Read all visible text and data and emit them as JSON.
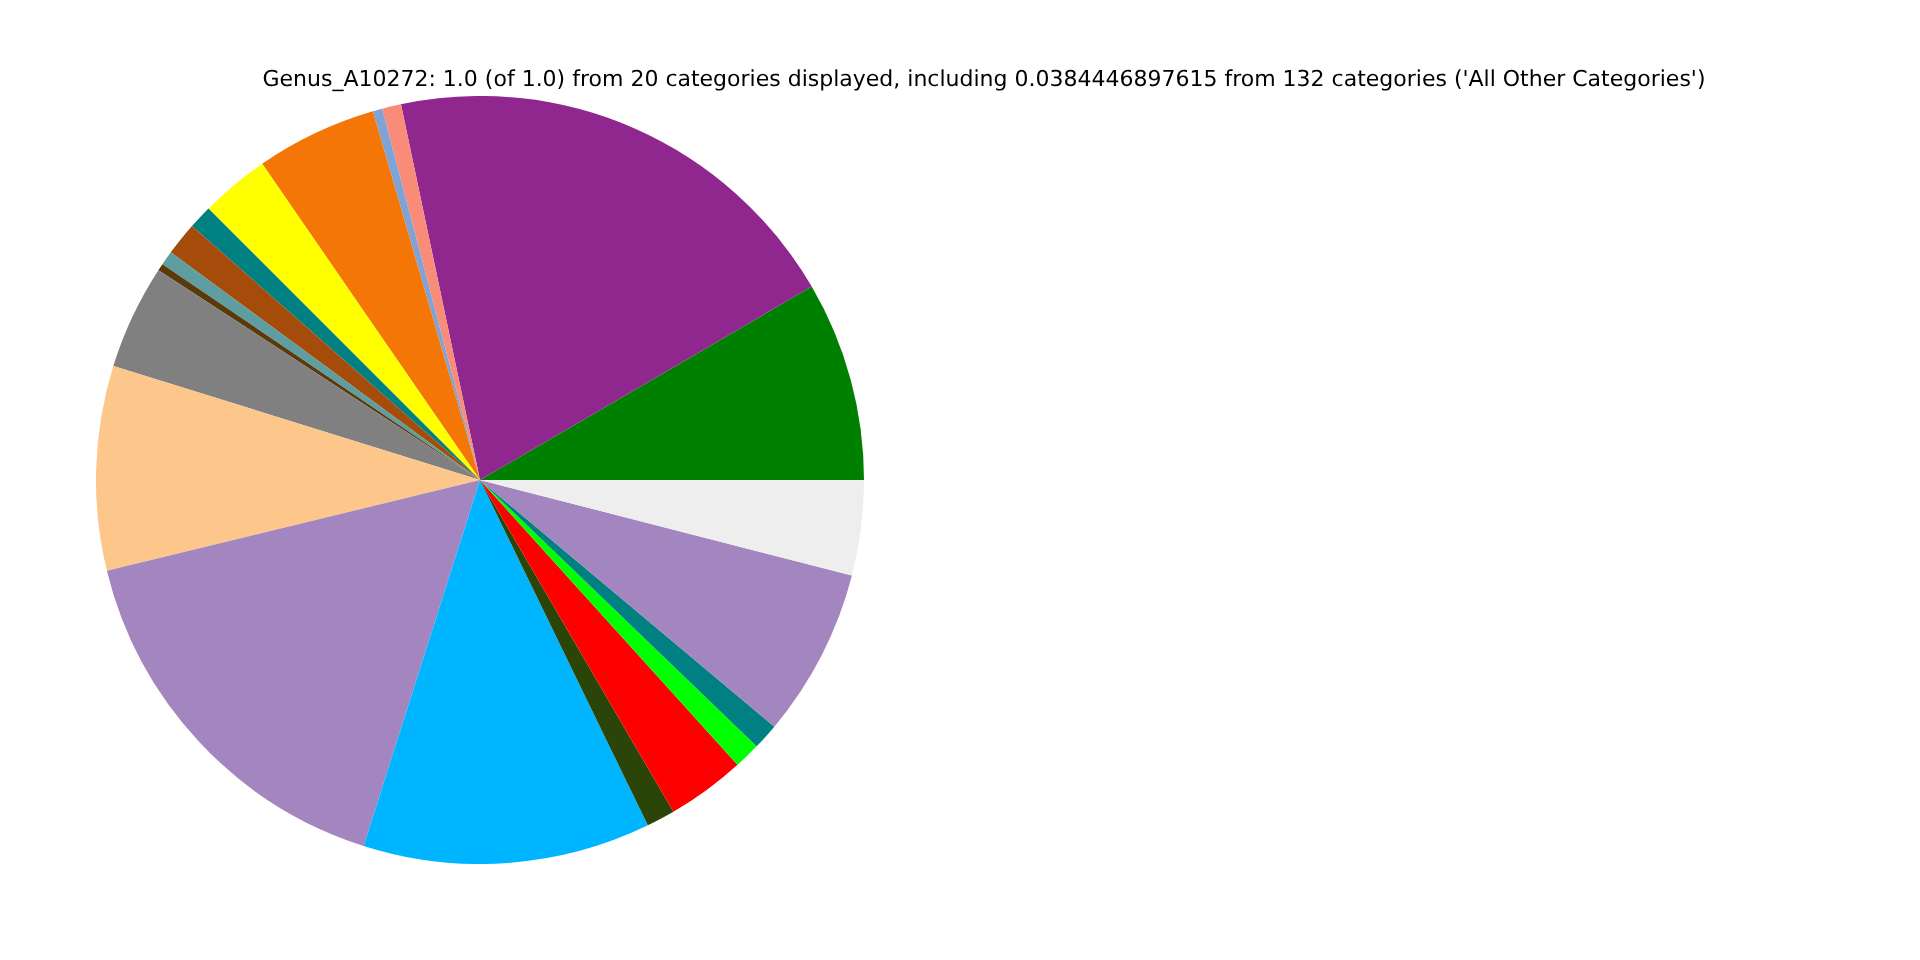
{
  "chart_data": {
    "type": "pie",
    "title": "Genus_A10272: 1.0 (of 1.0) from 20 categories displayed, including 0.0384446897615 from 132 categories ('All Other Categories')",
    "categories": [
      null,
      null,
      null,
      null,
      null,
      null,
      null,
      null,
      null,
      null,
      null,
      null,
      null,
      null,
      null,
      null,
      null,
      null,
      null,
      null
    ],
    "values": [
      8.4,
      19.9,
      0.8,
      0.4,
      5.1,
      2.9,
      1.0,
      1.4,
      0.6,
      0.3,
      4.4,
      8.6,
      16.3,
      12.1,
      1.2,
      3.3,
      1.1,
      1.1,
      7.1,
      4.0
    ],
    "colors": [
      "#008000",
      "#8f278f",
      "#f88c78",
      "#7fa3d6",
      "#f47606",
      "#ffff00",
      "#008080",
      "#a54c0a",
      "#5f9ea0",
      "#5a3a0a",
      "#808080",
      "#fdc68a",
      "#a386bf",
      "#00b5ff",
      "#2b4508",
      "#ff0000",
      "#00ff00",
      "#008080",
      "#a386bf",
      "#eeeeee"
    ],
    "legend": false
  }
}
